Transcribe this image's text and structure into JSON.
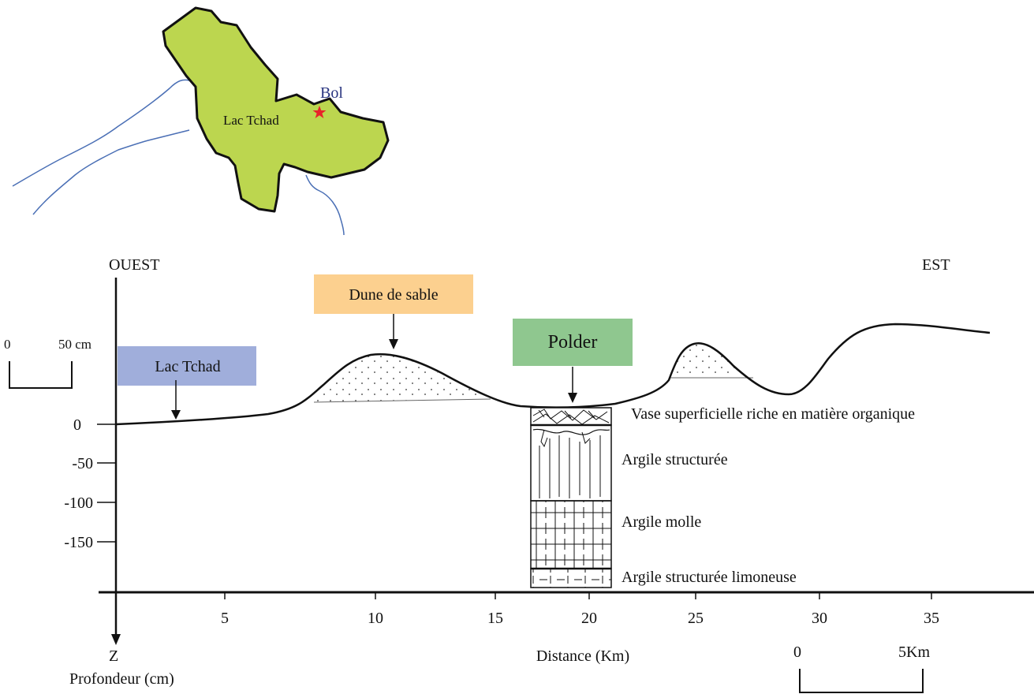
{
  "map": {
    "lake_label": "Lac Tchad",
    "town_label": "Bol",
    "colors": {
      "lake": "#bcd64f",
      "river": "#4a6fb5",
      "star": "#e8232a",
      "town_text": "#2a3580"
    }
  },
  "profile": {
    "west_label": "OUEST",
    "east_label": "EST",
    "vertical_scale": {
      "zero": "0",
      "value": "50 cm"
    },
    "depth_axis": {
      "ticks": [
        "0",
        "-50",
        "-100",
        "-150"
      ],
      "letter": "Z",
      "label": "Profondeur (cm)"
    },
    "distance_axis": {
      "ticks": [
        "5",
        "10",
        "15",
        "20",
        "25",
        "30",
        "35"
      ],
      "label": "Distance (Km)"
    },
    "horizontal_scale": {
      "zero": "0",
      "value": "5Km"
    },
    "callouts": {
      "lake": {
        "text": "Lac Tchad",
        "color": "#a0aedb"
      },
      "dune": {
        "text": "Dune de sable",
        "color": "#fcd08f"
      },
      "polder": {
        "text": "Polder",
        "color": "#8fc78f"
      }
    },
    "soil_layers": [
      "Vase superficielle riche en matière organique",
      "Argile structurée",
      "Argile molle",
      "Argile structurée limoneuse"
    ]
  }
}
